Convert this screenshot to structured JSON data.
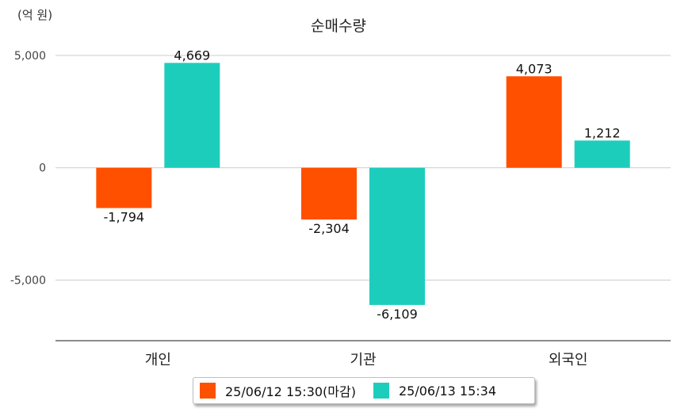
{
  "unit_label": "(억 원)",
  "chart_data": {
    "type": "bar",
    "title": "순매수량",
    "categories": [
      "개인",
      "기관",
      "외국인"
    ],
    "yticks": [
      5000,
      0,
      -5000
    ],
    "ytick_labels": [
      "5,000",
      "0",
      "-5,000"
    ],
    "ylim": [
      -7700,
      5000
    ],
    "grid": true,
    "legend_placement": "bottom",
    "series": [
      {
        "name": "25/06/12 15:30(마감)",
        "color": "#ff5000",
        "values": [
          -1794,
          -2304,
          4073
        ],
        "labels": [
          "-1,794",
          "-2,304",
          "4,073"
        ]
      },
      {
        "name": "25/06/13 15:34",
        "color": "#1dcdbc",
        "values": [
          4669,
          -6109,
          1212
        ],
        "labels": [
          "4,669",
          "-6,109",
          "1,212"
        ]
      }
    ]
  }
}
